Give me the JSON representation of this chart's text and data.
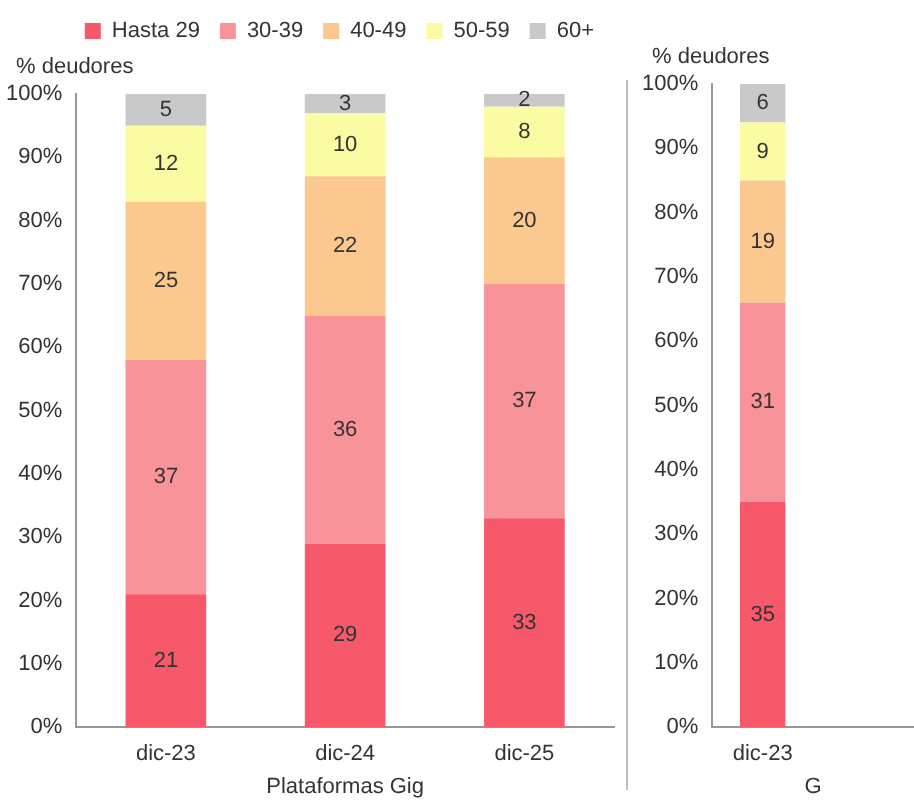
{
  "chart_data": [
    {
      "type": "bar",
      "stacked": true,
      "xlabel": "Plataformas Gig",
      "ylabel": "% deudores",
      "categories": [
        "dic-23",
        "dic-24",
        "dic-25"
      ],
      "legend": "top right",
      "grid": false,
      "data_labels": true,
      "ylim": [
        0,
        100
      ],
      "yticks": [
        {
          "value": 0,
          "label": "0%"
        },
        {
          "value": 10,
          "label": "10%"
        },
        {
          "value": 20,
          "label": "20%"
        },
        {
          "value": 30,
          "label": "30%"
        },
        {
          "value": 40,
          "label": "40%"
        },
        {
          "value": 50,
          "label": "50%"
        },
        {
          "value": 60,
          "label": "60%"
        },
        {
          "value": 70,
          "label": "70%"
        },
        {
          "value": 80,
          "label": "80%"
        },
        {
          "value": 90,
          "label": "90%"
        },
        {
          "value": 100,
          "label": "100%"
        }
      ],
      "series": [
        {
          "name": "Hasta 29",
          "color": "#f7596b",
          "values": [
            21,
            29,
            33
          ]
        },
        {
          "name": "30-39",
          "color": "#f9939a",
          "values": [
            37,
            36,
            37
          ]
        },
        {
          "name": "40-49",
          "color": "#fbc98f",
          "values": [
            25,
            22,
            20
          ]
        },
        {
          "name": "50-59",
          "color": "#fbfba4",
          "values": [
            12,
            10,
            8
          ]
        },
        {
          "name": "60+",
          "color": "#c9c9c9",
          "values": [
            5,
            3,
            2
          ]
        }
      ]
    },
    {
      "type": "bar",
      "stacked": true,
      "xlabel": "G",
      "ylabel": "% deudores",
      "categories": [
        "dic-23",
        null
      ],
      "legend": false,
      "grid": false,
      "data_labels": true,
      "ylim": [
        0,
        100
      ],
      "yticks": [
        {
          "value": 0,
          "label": "0%"
        },
        {
          "value": 10,
          "label": "10%"
        },
        {
          "value": 20,
          "label": "20%"
        },
        {
          "value": 30,
          "label": "30%"
        },
        {
          "value": 40,
          "label": "40%"
        },
        {
          "value": 50,
          "label": "50%"
        },
        {
          "value": 60,
          "label": "60%"
        },
        {
          "value": 70,
          "label": "70%"
        },
        {
          "value": 80,
          "label": "80%"
        },
        {
          "value": 90,
          "label": "90%"
        },
        {
          "value": 100,
          "label": "100%"
        }
      ],
      "series": [
        {
          "color": "#f7596b",
          "values": [
            35,
            null
          ]
        },
        {
          "color": "#f9939a",
          "values": [
            31,
            null
          ]
        },
        {
          "color": "#fbc98f",
          "values": [
            19,
            null
          ]
        },
        {
          "color": "#fbfba4",
          "values": [
            9,
            null
          ]
        },
        {
          "color": "#c9c9c9",
          "values": [
            6,
            null
          ]
        }
      ]
    }
  ]
}
